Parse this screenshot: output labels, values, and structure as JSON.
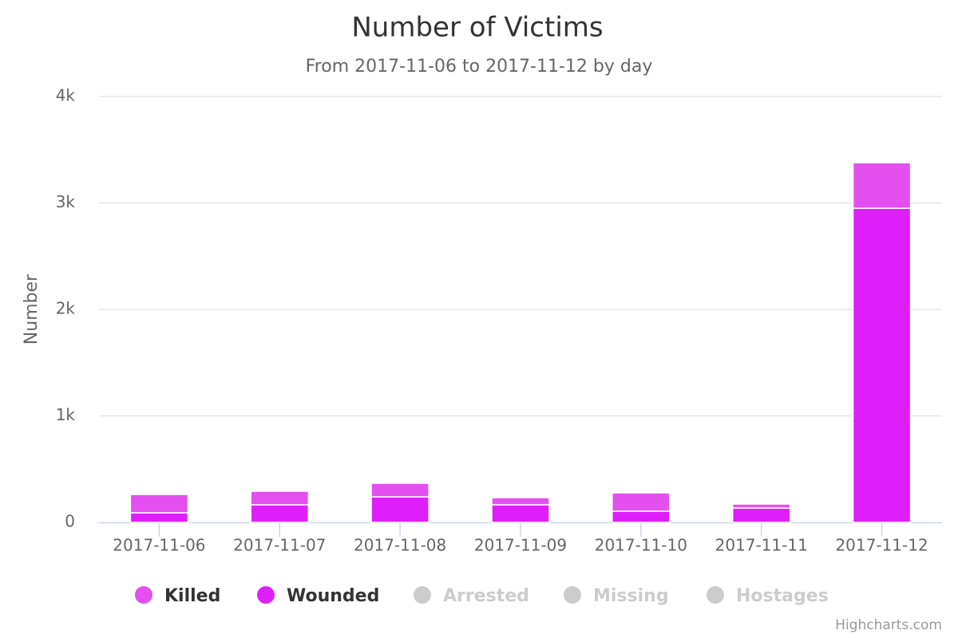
{
  "chart_data": {
    "type": "stacked_bar",
    "title": "Number of Victims",
    "subtitle": "From 2017-11-06 to 2017-11-12 by day",
    "y_axis_label": "Number",
    "credits": "Highcharts.com",
    "categories": [
      "2017-11-06",
      "2017-11-07",
      "2017-11-08",
      "2017-11-09",
      "2017-11-10",
      "2017-11-11",
      "2017-11-12"
    ],
    "series": [
      {
        "name": "Killed",
        "color": "#e44ff0",
        "visible": true,
        "values": [
          172,
          127,
          127,
          67,
          172,
          37,
          427
        ]
      },
      {
        "name": "Wounded",
        "color": "#df1ffa",
        "visible": true,
        "values": [
          90,
          165,
          240,
          165,
          105,
          135,
          2951
        ]
      },
      {
        "name": "Arrested",
        "color": "#cccccc",
        "visible": false,
        "values": [
          null,
          null,
          null,
          null,
          null,
          null,
          null
        ]
      },
      {
        "name": "Missing",
        "color": "#cccccc",
        "visible": false,
        "values": [
          null,
          null,
          null,
          null,
          null,
          null,
          null
        ]
      },
      {
        "name": "Hostages",
        "color": "#cccccc",
        "visible": false,
        "values": [
          null,
          null,
          null,
          null,
          null,
          null,
          null
        ]
      }
    ],
    "ylim": [
      0,
      4000
    ],
    "yticks": [
      0,
      {
        "value": 1000,
        "label": "1k"
      },
      {
        "value": 2000,
        "label": "2k"
      },
      {
        "value": 3000,
        "label": "3k"
      },
      {
        "value": 4000,
        "label": "4k"
      }
    ],
    "grid": true,
    "legend_position": "bottom"
  }
}
